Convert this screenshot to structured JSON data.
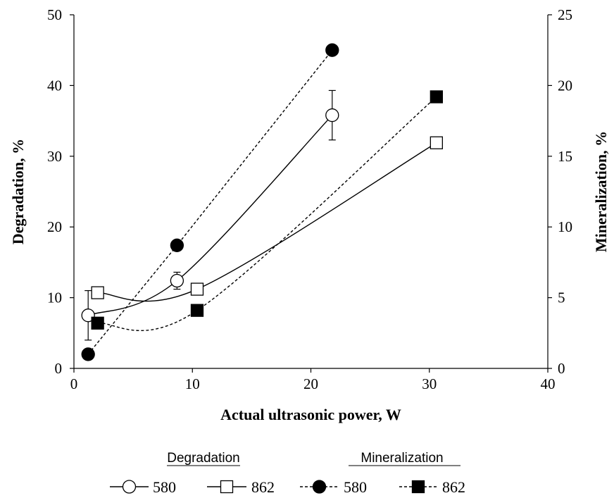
{
  "chart_data": {
    "type": "line",
    "title": "",
    "xlabel": "Actual ultrasonic power, W",
    "ylabel": "Degradation, %",
    "y2label": "Mineralization, %",
    "xlim": [
      0,
      40
    ],
    "ylim": [
      0,
      50
    ],
    "y2lim": [
      0,
      25
    ],
    "x_ticks": [
      "0",
      "10",
      "20",
      "30",
      "40"
    ],
    "y_ticks": [
      "0",
      "10",
      "20",
      "30",
      "40",
      "50"
    ],
    "y2_ticks": [
      "0",
      "5",
      "10",
      "15",
      "20",
      "25"
    ],
    "grid": false,
    "legend_position": "bottom",
    "legend_groups": [
      "Degradation",
      "Mineralization"
    ],
    "series": [
      {
        "name": "580",
        "group": "Degradation",
        "axis": "left",
        "marker": "open-circle",
        "line": "solid-smooth",
        "x": [
          1.2,
          8.7,
          21.8
        ],
        "y": [
          7.5,
          12.4,
          35.8
        ],
        "yerr": [
          3.5,
          1.2,
          3.5
        ]
      },
      {
        "name": "862",
        "group": "Degradation",
        "axis": "left",
        "marker": "open-square",
        "line": "solid-smooth",
        "x": [
          2.0,
          10.4,
          30.6
        ],
        "y": [
          10.7,
          11.2,
          31.9
        ]
      },
      {
        "name": "580",
        "group": "Mineralization",
        "axis": "right",
        "marker": "filled-circle",
        "line": "dashed",
        "x": [
          1.2,
          8.7,
          21.8
        ],
        "y": [
          1.0,
          8.7,
          22.5
        ]
      },
      {
        "name": "862",
        "group": "Mineralization",
        "axis": "right",
        "marker": "filled-square",
        "line": "dashed-smooth",
        "x": [
          2.0,
          10.4,
          30.6
        ],
        "y": [
          3.2,
          4.1,
          19.2
        ]
      }
    ]
  }
}
